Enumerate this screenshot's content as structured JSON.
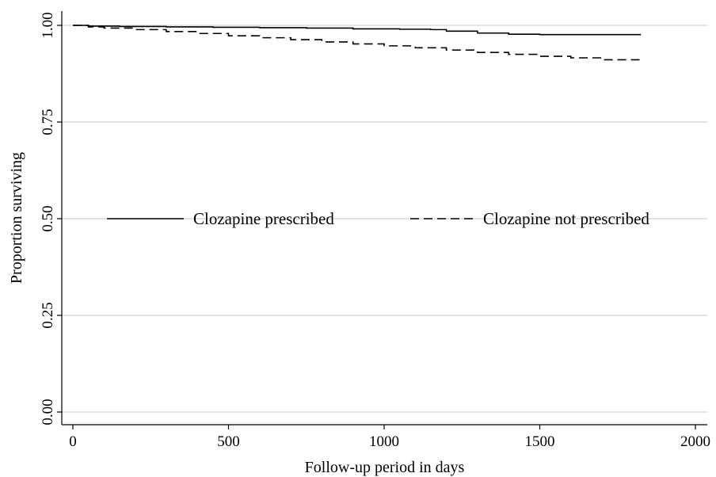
{
  "chart_data": {
    "type": "line",
    "title": "",
    "xlabel": "Follow-up period in days",
    "ylabel": "Proportion surviving",
    "xlim": [
      0,
      2000
    ],
    "ylim": [
      0,
      1
    ],
    "x_ticks": [
      0,
      500,
      1000,
      1500,
      2000
    ],
    "x_tick_labels": [
      "0",
      "500",
      "1000",
      "1500",
      "2000"
    ],
    "y_ticks": [
      0,
      0.25,
      0.5,
      0.75,
      1
    ],
    "y_tick_labels": [
      "0.00",
      "0.25",
      "0.50",
      "0.75",
      "1.00"
    ],
    "grid": "horizontal",
    "legend_position": "center",
    "series": [
      {
        "name": "Clozapine prescribed",
        "style": "solid",
        "color": "#000000",
        "x": [
          0,
          50,
          150,
          300,
          450,
          600,
          750,
          900,
          1050,
          1150,
          1200,
          1300,
          1400,
          1500,
          1600,
          1700,
          1825
        ],
        "y": [
          1.0,
          0.998,
          0.997,
          0.996,
          0.995,
          0.994,
          0.993,
          0.991,
          0.99,
          0.989,
          0.985,
          0.98,
          0.977,
          0.976,
          0.976,
          0.976,
          0.976
        ]
      },
      {
        "name": "Clozapine not prescribed",
        "style": "dashed",
        "color": "#000000",
        "x": [
          0,
          50,
          100,
          200,
          300,
          400,
          500,
          600,
          700,
          800,
          900,
          1000,
          1100,
          1200,
          1300,
          1400,
          1500,
          1600,
          1700,
          1825
        ],
        "y": [
          1.0,
          0.996,
          0.993,
          0.989,
          0.984,
          0.979,
          0.973,
          0.968,
          0.963,
          0.957,
          0.952,
          0.947,
          0.942,
          0.936,
          0.93,
          0.925,
          0.92,
          0.916,
          0.911,
          0.905
        ]
      }
    ]
  }
}
